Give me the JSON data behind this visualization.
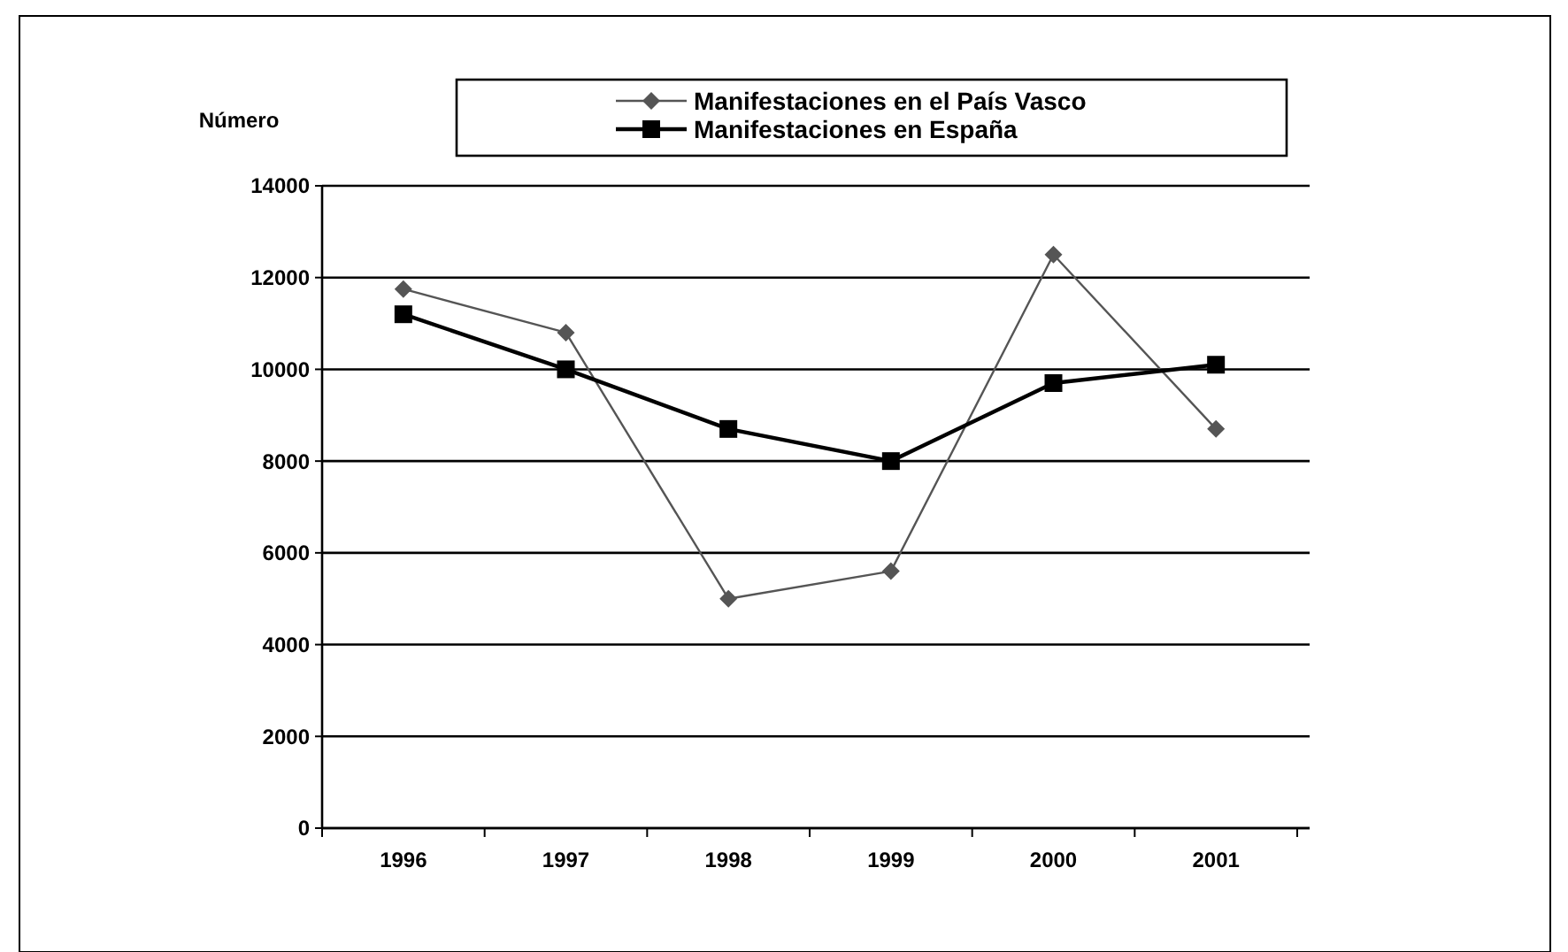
{
  "chart_data": {
    "type": "line",
    "ylabel": "Número",
    "categories": [
      "1996",
      "1997",
      "1998",
      "1999",
      "2000",
      "2001"
    ],
    "series": [
      {
        "name": "Manifestaciones en el País Vasco",
        "color": "#555555",
        "values": [
          11750,
          10800,
          5000,
          5600,
          12500,
          8700
        ],
        "marker": "diamond"
      },
      {
        "name": "Manifestaciones en España",
        "color": "#000000",
        "values": [
          11200,
          10000,
          8700,
          8000,
          9700,
          10100
        ],
        "marker": "square"
      }
    ],
    "ylim": [
      0,
      14000
    ],
    "yticks": [
      0,
      2000,
      4000,
      6000,
      8000,
      10000,
      12000,
      14000
    ],
    "grid": "y",
    "legend": "top"
  }
}
